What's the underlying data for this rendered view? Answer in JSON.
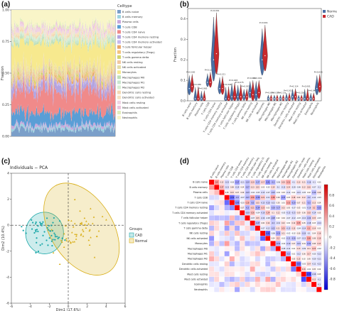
{
  "labels": {
    "a": "(a)",
    "b": "(b)",
    "c": "(c)",
    "d": "(d)"
  },
  "chart_data": [
    {
      "panel": "a",
      "type": "area",
      "ylabel": "Fraction",
      "ylim": [
        0,
        1
      ],
      "yticks": [
        "0.00",
        "0.25",
        "0.50",
        "0.75",
        "1.00"
      ],
      "legend_title": "Celltype",
      "legend_position": "right",
      "samples": 120,
      "series": [
        {
          "name": "B cells naive",
          "color": "#7b9fc9",
          "mean": 0.06
        },
        {
          "name": "B cells memory",
          "color": "#9fd4e0",
          "mean": 0.02
        },
        {
          "name": "Plasma cells",
          "color": "#c9a9dc",
          "mean": 0.02
        },
        {
          "name": "T cells CD8",
          "color": "#5a9ed6",
          "mean": 0.1
        },
        {
          "name": "T cells CD4 naive",
          "color": "#f08a8a",
          "mean": 0.18
        },
        {
          "name": "T cells CD4 memory resting",
          "color": "#b3a4e0",
          "mean": 0.06
        },
        {
          "name": "T cells CD4 memory activated",
          "color": "#c7b9ee",
          "mean": 0.02
        },
        {
          "name": "T cells follicular helper",
          "color": "#e8a86b",
          "mean": 0.02
        },
        {
          "name": "T cells regulatory (Tregs)",
          "color": "#f3c47e",
          "mean": 0.02
        },
        {
          "name": "T cells gamma delta",
          "color": "#d3d46f",
          "mean": 0.02
        },
        {
          "name": "NK cells resting",
          "color": "#f2c9a0",
          "mean": 0.03
        },
        {
          "name": "NK cells activated",
          "color": "#e5dea8",
          "mean": 0.03
        },
        {
          "name": "Monocytes",
          "color": "#f7e98e",
          "mean": 0.2
        },
        {
          "name": "Macrophages M0",
          "color": "#bfe0b8",
          "mean": 0.02
        },
        {
          "name": "Macrophages M1",
          "color": "#c9e6cf",
          "mean": 0.02
        },
        {
          "name": "Macrophages M2",
          "color": "#d9efd5",
          "mean": 0.02
        },
        {
          "name": "Dendritic cells resting",
          "color": "#f4d9b3",
          "mean": 0.02
        },
        {
          "name": "Dendritic cells activated",
          "color": "#f6e3c2",
          "mean": 0.02
        },
        {
          "name": "Mast cells resting",
          "color": "#f0d3e4",
          "mean": 0.02
        },
        {
          "name": "Mast cells activated",
          "color": "#ecc6dc",
          "mean": 0.02
        },
        {
          "name": "Eosinophils",
          "color": "#e3eebd",
          "mean": 0.02
        },
        {
          "name": "Neutrophils",
          "color": "#f9f5c8",
          "mean": 0.12
        }
      ]
    },
    {
      "panel": "b",
      "type": "violin",
      "ylabel": "Fraction",
      "ylim": [
        0,
        0.45
      ],
      "yticks": [
        "0.0",
        "0.1",
        "0.2",
        "0.3",
        "0.4"
      ],
      "legend": [
        {
          "name": "Normal",
          "color": "#4a6fa5"
        },
        {
          "name": "CAD",
          "color": "#c8282d"
        }
      ],
      "categories": [
        "B cells naive",
        "B cells memory",
        "Plasma cells",
        "T cells CD8",
        "T cells CD4 naive",
        "T cells CD4 memory resting",
        "T cells CD4 memory activated",
        "T cells follicular helper",
        "T cells regulatory (Tregs)",
        "T cells gamma delta",
        "NK cells resting",
        "NK cells activated",
        "Monocytes",
        "Macrophages M0",
        "Macrophages M1",
        "Macrophages M2",
        "Dendritic cells resting",
        "Dendritic cells activated",
        "Mast cells resting",
        "Mast cells activated",
        "Eosinophils",
        "Neutrophils"
      ],
      "normal_median": [
        0.06,
        0.01,
        0.01,
        0.09,
        0.2,
        0.06,
        0.01,
        0.02,
        0.02,
        0.02,
        0.04,
        0.03,
        0.2,
        0.01,
        0.01,
        0.01,
        0.01,
        0.02,
        0.01,
        0.01,
        0.01,
        0.06
      ],
      "cad_median": [
        0.07,
        0.01,
        0.01,
        0.09,
        0.23,
        0.06,
        0.01,
        0.02,
        0.02,
        0.02,
        0.03,
        0.04,
        0.22,
        0.01,
        0.01,
        0.01,
        0.01,
        0.02,
        0.01,
        0.01,
        0.01,
        0.07
      ],
      "top": [
        0.13,
        0.07,
        0.05,
        0.14,
        0.43,
        0.12,
        0.07,
        0.09,
        0.08,
        0.06,
        0.1,
        0.1,
        0.37,
        0.03,
        0.03,
        0.03,
        0.04,
        0.06,
        0.03,
        0.06,
        0.04,
        0.13
      ],
      "pvalues": [
        "P=0.030",
        "P=0.186",
        "P=0.065",
        "P=0.124",
        "P<0.001",
        "P=0.121",
        "P=0.006",
        "P=0.028",
        "P=0.075",
        "P=0.037",
        "P=0.006",
        "P<0.001",
        "P<0.001",
        "P=0.651",
        "P=0.521",
        "P=0.131",
        "P=0.101",
        "P=0.114",
        "P=0.126",
        "P<0.001",
        "P=0.040",
        "P=0.035"
      ]
    },
    {
      "panel": "c",
      "type": "scatter",
      "title": "Individuals − PCA",
      "xlabel": "Dim1 (17.6%)",
      "ylabel": "Dim2 (10.4%)",
      "xlim": [
        -6,
        6
      ],
      "ylim": [
        -6,
        4
      ],
      "xticks": [
        "-6",
        "-4",
        "-2",
        "0",
        "2",
        "4",
        "6"
      ],
      "yticks": [
        "4",
        "2",
        "0",
        "-2",
        "-4",
        "-6"
      ],
      "legend_title": "Groups",
      "series": [
        {
          "name": "CAD",
          "color": "#1aa7a8",
          "center": [
            -2.4,
            -0.6
          ],
          "n": 55
        },
        {
          "name": "Normal",
          "color": "#d8ad14",
          "center": [
            1.3,
            -0.4
          ],
          "n": 55
        }
      ]
    },
    {
      "panel": "d",
      "type": "heatmap",
      "scale_ticks": [
        "0.8",
        "0.6",
        "0.4",
        "0.2",
        "0",
        "-0.2",
        "-0.4",
        "-0.6",
        "-0.8"
      ],
      "rows": [
        "B cells naive",
        "B cells memory",
        "Plasma cells",
        "T cells CD8",
        "T cells CD4 naive",
        "T cells CD4 memory resting",
        "T cells CD4 memory activated",
        "T cells follicular helper",
        "T cells regulatory (Tregs)",
        "T cells gamma delta",
        "NK cells resting",
        "NK cells activated",
        "Monocytes",
        "Macrophages M0",
        "Macrophages M1",
        "Macrophages M2",
        "Dendritic cells resting",
        "Dendritic cells activated",
        "Mast cells resting",
        "Mast cells activated",
        "Eosinophils",
        "Neutrophils"
      ],
      "cells": [
        [
          0.4,
          0.12,
          -0.15,
          -0.03,
          -0.37,
          -0.11,
          -0.24,
          0.19,
          -0.27,
          0.17,
          -0.41,
          -0.3,
          -0.06,
          0.19,
          0.31,
          -0.1,
          0.13,
          0.11,
          -0.18,
          -0.1,
          -0.01
        ],
        [
          0.27,
          -0.13,
          0.08,
          -0.14,
          0.04,
          -0.27,
          0.13,
          0.15,
          0.03,
          -0.02,
          0.14,
          -0.1,
          -0.12,
          0.14,
          -0.09,
          -0.06,
          0.12,
          0.16,
          -0.07,
          -0.1
        ],
        [
          0.05,
          0.13,
          0.07,
          0.06,
          -0.23,
          -0.04,
          -0.05,
          -0.13,
          -0.07,
          -0.23,
          -0.02,
          0.03,
          -0.11,
          0.01,
          -0.13,
          -0.05,
          0.02,
          -0.26,
          0.09
        ],
        [
          -0.59,
          -0.3,
          -0.07,
          -0.27,
          0.36,
          -0.38,
          0.21,
          -0.11,
          0.38,
          0.06,
          -0.37,
          0.03,
          0.18,
          0.09,
          0.12,
          -0.2,
          -0.11,
          -0.03
        ],
        [
          -0.45,
          -0.03,
          0.28,
          -0.3,
          0.15,
          -0.15,
          -0.18,
          -0.13,
          0.05,
          0.01,
          0.32,
          -0.29,
          0.07,
          0.11,
          -0.3,
          0.13,
          0.04
        ],
        [
          0.07,
          -0.3,
          0.21,
          -0.34,
          0.23,
          0.03,
          -0.28,
          -0.27,
          0.13,
          0.05,
          -0.07,
          0.05,
          -0.01,
          -0.19,
          0.2,
          -0.35
        ],
        [
          -0.19,
          0.26,
          -0.04,
          -0.16,
          0.24,
          0.1,
          0.12,
          -0.05,
          -0.15,
          -0.15,
          0.09,
          0.06,
          0.18,
          -0.14,
          0.05
        ],
        [
          -0.07,
          0.15,
          -0.14,
          -0.08,
          -0.28,
          0.02,
          0.04,
          -0.07,
          -0.12,
          -0.03,
          -0.12,
          -0.24,
          0.15,
          -0.03
        ],
        [
          -0.27,
          0.06,
          0.14,
          -0.2,
          -0.12,
          0.12,
          0.02,
          0.12,
          0.33,
          0.05,
          -0.18,
          0.03,
          -0.14
        ],
        [
          -0.07,
          -0.12,
          -0.22,
          0.11,
          0.23,
          -0.15,
          0.15,
          -0.04,
          -0.14,
          0.3,
          0.14,
          0.03
        ],
        [
          -0.62,
          -0.06,
          -0.33,
          0.11,
          -0.02,
          -0.02,
          0.06,
          -0.18,
          -0.1,
          0.04,
          0.16
        ],
        [
          0.04,
          0.2,
          -0.01,
          -0.21,
          -0.26,
          -0.07,
          -0.13,
          0.36,
          0.08,
          0.19
        ],
        [
          -0.31,
          -0.02,
          -0.19,
          0.07,
          -0.21,
          0.04,
          -0.31,
          0.08,
          0.17
        ],
        [
          -0.08,
          -0.11,
          0.01,
          0.13,
          -0.09,
          0.11,
          0.23,
          -0.02
        ],
        [
          -0.3,
          0.01,
          -0.12,
          0.06,
          0.17,
          -0.05,
          -0.12
        ],
        [
          0.05,
          0.15,
          0.02,
          0.05,
          -0.09,
          -0.11
        ],
        [
          -0.53,
          -0.02,
          0.14,
          -0.11,
          -0.12
        ],
        [
          0.16,
          -0.01,
          0.05,
          0.02
        ],
        [
          -0.72,
          -0.16,
          0.03
        ],
        [
          0.12,
          -0.1
        ],
        [
          -0.1
        ],
        []
      ]
    }
  ]
}
